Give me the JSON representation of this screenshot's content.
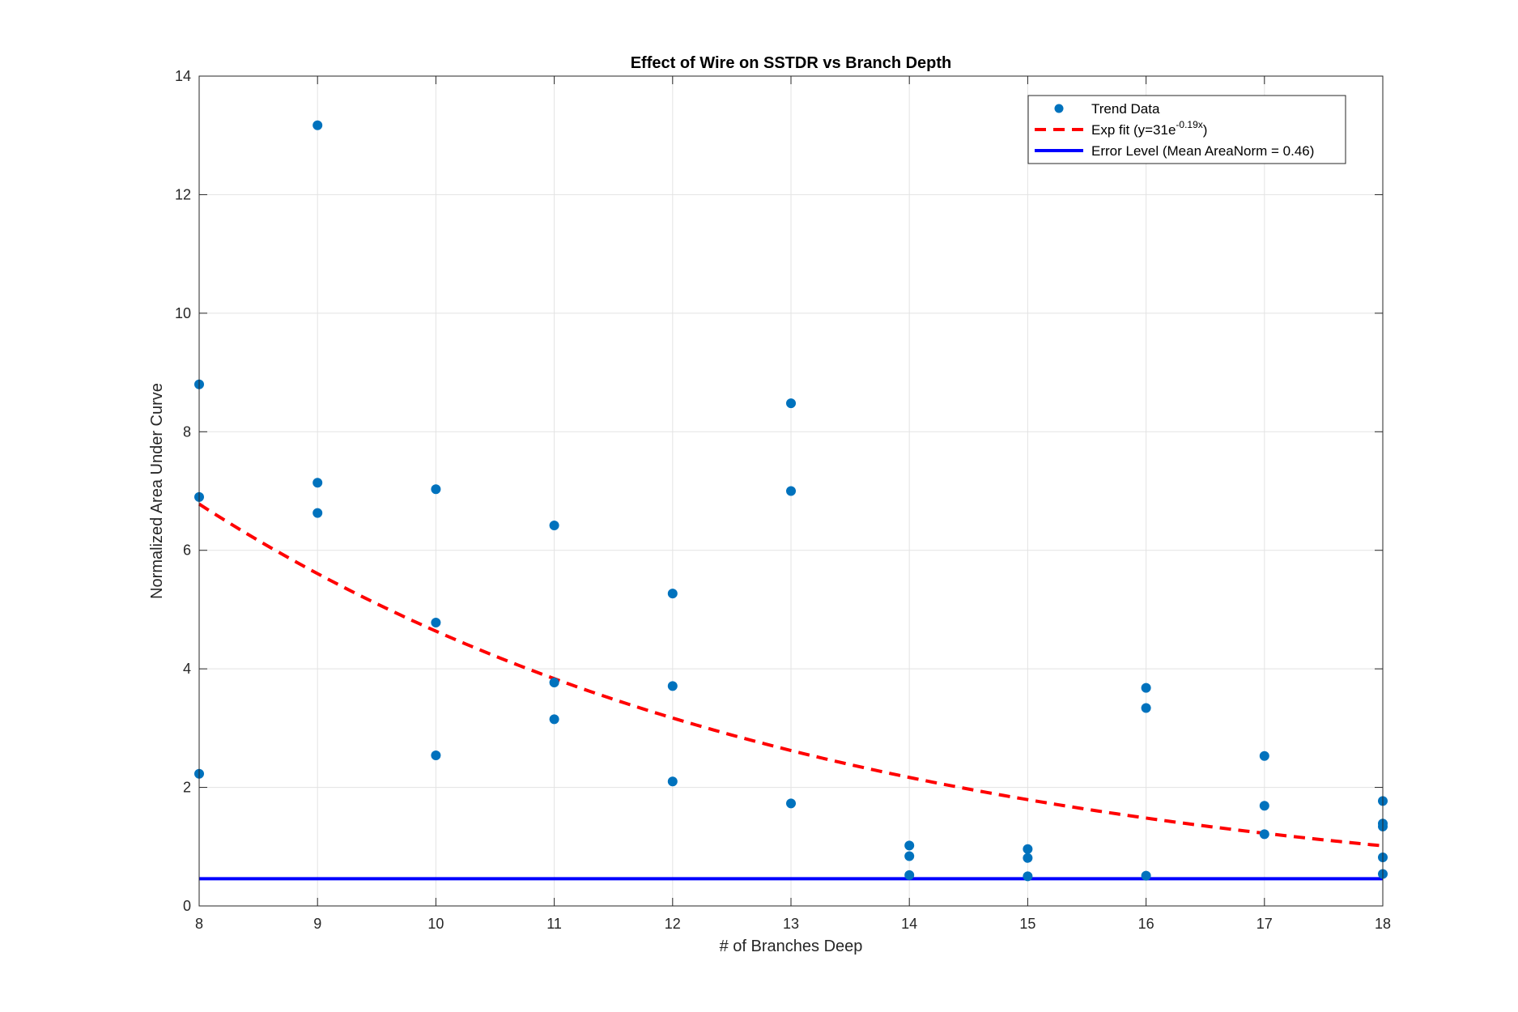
{
  "chart_data": {
    "type": "scatter",
    "title": "Effect of Wire on SSTDR vs Branch Depth",
    "xlabel": "# of Branches Deep",
    "ylabel": "Normalized Area Under Curve",
    "xlim": [
      8,
      18
    ],
    "ylim": [
      0,
      14
    ],
    "xticks": [
      8,
      9,
      10,
      11,
      12,
      13,
      14,
      15,
      16,
      17,
      18
    ],
    "yticks": [
      0,
      2,
      4,
      6,
      8,
      10,
      12,
      14
    ],
    "grid": true,
    "legend_position": "top-right",
    "series": [
      {
        "name": "Trend Data",
        "kind": "scatter",
        "color": "#0072BD",
        "x": [
          8,
          8,
          8,
          9,
          9,
          9,
          10,
          10,
          10,
          11,
          11,
          11,
          12,
          12,
          12,
          13,
          13,
          13,
          14,
          14,
          14,
          15,
          15,
          15,
          16,
          16,
          16,
          17,
          17,
          17,
          18,
          18,
          18,
          18,
          18
        ],
        "y": [
          8.8,
          6.9,
          2.23,
          13.17,
          7.14,
          6.63,
          7.03,
          4.78,
          2.54,
          6.42,
          3.77,
          3.15,
          5.27,
          3.71,
          2.1,
          8.48,
          7.0,
          1.73,
          1.02,
          0.84,
          0.52,
          0.96,
          0.81,
          0.5,
          3.68,
          3.34,
          0.51,
          2.53,
          1.69,
          1.21,
          1.77,
          1.39,
          1.34,
          0.82,
          0.54
        ]
      },
      {
        "name": "Exp fit (y=31e-0.19x)",
        "name_parts": {
          "prefix": "Exp fit (y=31e",
          "sup": "-0.19x",
          "suffix": ")"
        },
        "kind": "line",
        "style": "dashed",
        "color": "#FF0000",
        "x": [
          8,
          9,
          10,
          11,
          12,
          13,
          14,
          15,
          16,
          17,
          18
        ],
        "y": [
          6.62,
          5.47,
          4.52,
          3.74,
          3.09,
          2.55,
          2.11,
          1.75,
          1.44,
          1.19,
          0.99
        ]
      },
      {
        "name": "Error Level (Mean AreaNorm = 0.46)",
        "kind": "line",
        "style": "solid",
        "color": "#0000FF",
        "x": [
          8,
          18
        ],
        "y": [
          0.46,
          0.46
        ]
      }
    ]
  }
}
